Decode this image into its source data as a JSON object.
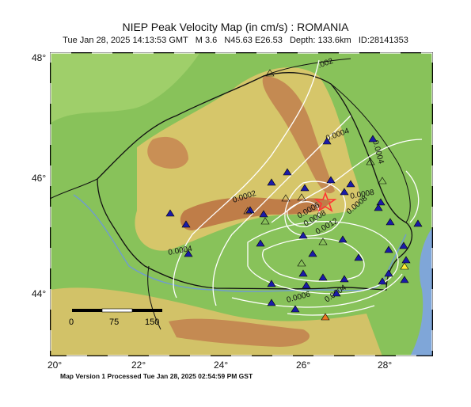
{
  "map": {
    "title": "NIEP Peak Velocity Map (in cm/s) : ROMANIA",
    "subtitle": {
      "datetime": "Tue Jan 28, 2025 14:13:53 GMT",
      "magnitude": "M 3.6",
      "location": "N45.63 E26.53",
      "depth": "Depth: 133.6km",
      "id": "ID:28141353"
    },
    "latitude_labels": [
      "48°",
      "46°",
      "44°"
    ],
    "longitude_labels": [
      "20°",
      "22°",
      "24°",
      "26°",
      "28°"
    ],
    "contour_labels": [
      "0.0002",
      "0.0004",
      "0.0004",
      "0.0004",
      "0.0006",
      "0.0008",
      "0.0012",
      "0.0008",
      "0.0008",
      "0.0006",
      "0.0004",
      "0.0004",
      ".002"
    ],
    "scale_bar": {
      "labels": [
        "0",
        "75",
        "150"
      ]
    },
    "footer": "Map Version 1 Processed Tue Jan 28, 2025 02:54:59 PM GST",
    "colors": {
      "sea": "#7fa6d8",
      "lowland": "#7fbf4f",
      "hills": "#d9c86a",
      "mountains": "#c48a52",
      "contour": "#ffffff",
      "station": "#1a1aa8",
      "epicenter": "#ff3333"
    }
  }
}
